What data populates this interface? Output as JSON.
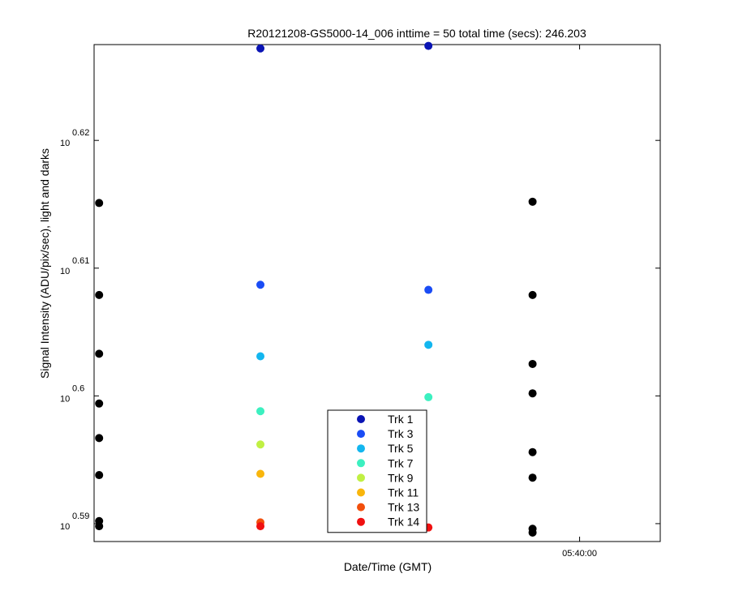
{
  "chart_data": {
    "type": "scatter",
    "title": "R20121208-GS5000-14_006 inttime = 50 total time (secs): 246.203",
    "xlabel": "Date/Time (GMT)",
    "ylabel": "Signal Intensity (ADU/pix/sec), light and darks",
    "yscale": "log",
    "ylim_exponent": [
      0.5886,
      0.6275
    ],
    "y_ticks": [
      {
        "base": "10",
        "exp": "0.59",
        "value_exponent": 0.59
      },
      {
        "base": "10",
        "exp": "0.6",
        "value_exponent": 0.6
      },
      {
        "base": "10",
        "exp": "0.61",
        "value_exponent": 0.61
      },
      {
        "base": "10",
        "exp": "0.62",
        "value_exponent": 0.62
      }
    ],
    "x_time_range": [
      "05:35:11",
      "05:40:48"
    ],
    "x_ticks": [
      {
        "label": "05:40:00",
        "time": "05:40:00"
      }
    ],
    "grid": false,
    "legend_position": "lower-center",
    "series": [
      {
        "name": "Trk 1",
        "color": "#0a14b4",
        "points": [
          {
            "t": "05:36:50",
            "y_exp": 0.6272
          },
          {
            "t": "05:38:30",
            "y_exp": 0.6274
          }
        ]
      },
      {
        "name": "Trk 3",
        "color": "#1a4cf5",
        "points": [
          {
            "t": "05:36:50",
            "y_exp": 0.6087
          },
          {
            "t": "05:38:30",
            "y_exp": 0.6083
          }
        ]
      },
      {
        "name": "Trk 5",
        "color": "#13b6ef",
        "points": [
          {
            "t": "05:36:50",
            "y_exp": 0.6031
          },
          {
            "t": "05:38:30",
            "y_exp": 0.604
          }
        ]
      },
      {
        "name": "Trk 7",
        "color": "#3cf0c0",
        "points": [
          {
            "t": "05:36:50",
            "y_exp": 0.5988
          },
          {
            "t": "05:38:30",
            "y_exp": 0.5999
          }
        ]
      },
      {
        "name": "Trk 9",
        "color": "#c0f043",
        "points": [
          {
            "t": "05:36:50",
            "y_exp": 0.5962
          }
        ]
      },
      {
        "name": "Trk 11",
        "color": "#f9b60c",
        "points": [
          {
            "t": "05:36:50",
            "y_exp": 0.5939
          }
        ]
      },
      {
        "name": "Trk 13",
        "color": "#f24f0c",
        "points": [
          {
            "t": "05:36:50",
            "y_exp": 0.5901
          }
        ]
      },
      {
        "name": "Trk 14",
        "color": "#f01010",
        "points": [
          {
            "t": "05:36:50",
            "y_exp": 0.5898
          },
          {
            "t": "05:38:30",
            "y_exp": 0.5897
          }
        ]
      },
      {
        "name": "",
        "color": "#000000",
        "points": [
          {
            "t": "05:35:14",
            "y_exp": 0.6151
          },
          {
            "t": "05:35:14",
            "y_exp": 0.6079
          },
          {
            "t": "05:35:14",
            "y_exp": 0.6033
          },
          {
            "t": "05:35:14",
            "y_exp": 0.5994
          },
          {
            "t": "05:35:14",
            "y_exp": 0.5967
          },
          {
            "t": "05:35:14",
            "y_exp": 0.5938
          },
          {
            "t": "05:35:14",
            "y_exp": 0.5902
          },
          {
            "t": "05:35:14",
            "y_exp": 0.5898
          },
          {
            "t": "05:39:32",
            "y_exp": 0.6152
          },
          {
            "t": "05:39:32",
            "y_exp": 0.6079
          },
          {
            "t": "05:39:32",
            "y_exp": 0.6025
          },
          {
            "t": "05:39:32",
            "y_exp": 0.6002
          },
          {
            "t": "05:39:32",
            "y_exp": 0.5956
          },
          {
            "t": "05:39:32",
            "y_exp": 0.5936
          },
          {
            "t": "05:39:32",
            "y_exp": 0.5896
          },
          {
            "t": "05:39:32",
            "y_exp": 0.5893
          }
        ]
      }
    ]
  }
}
